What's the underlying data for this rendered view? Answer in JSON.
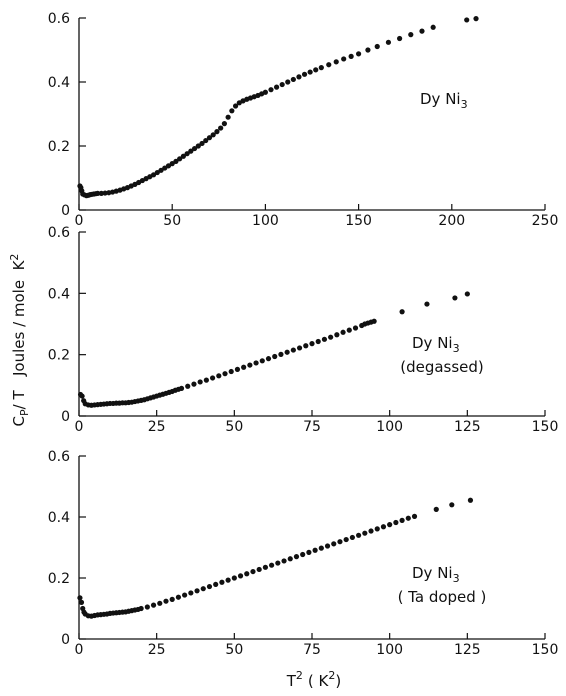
{
  "y_axis_label": "C",
  "y_axis_label_sub": "P",
  "y_axis_label_rest": "/ T   Joules / mole  K",
  "y_axis_label_sup": "2",
  "x_axis_label": "T",
  "x_axis_label_sup": "2",
  "x_axis_label_rest": "( K",
  "x_axis_label_sup2": "2",
  "x_axis_label_close": ")",
  "colors": {
    "axis": "#111111",
    "points": "#111111",
    "background": "#ffffff"
  },
  "chart_data": [
    {
      "type": "scatter",
      "annotation": [
        "Dy Ni",
        "3"
      ],
      "annotation_sub": "",
      "xlim": [
        0,
        250
      ],
      "ylim": [
        0,
        0.6
      ],
      "x_ticks": [
        0,
        50,
        100,
        150,
        200,
        250
      ],
      "y_ticks": [
        0,
        0.2,
        0.4,
        0.6
      ],
      "x_tick_labels": [
        "0",
        "50",
        "100",
        "150",
        "200",
        "250"
      ],
      "y_tick_labels": [
        "0",
        "0.2",
        "0.4",
        "0.6"
      ],
      "points": [
        [
          0.5,
          0.075
        ],
        [
          1.0,
          0.07
        ],
        [
          1.5,
          0.06
        ],
        [
          2,
          0.05
        ],
        [
          3,
          0.047
        ],
        [
          4,
          0.045
        ],
        [
          5,
          0.046
        ],
        [
          6,
          0.048
        ],
        [
          7,
          0.049
        ],
        [
          8,
          0.05
        ],
        [
          9,
          0.051
        ],
        [
          10,
          0.052
        ],
        [
          12,
          0.052
        ],
        [
          14,
          0.053
        ],
        [
          16,
          0.054
        ],
        [
          18,
          0.056
        ],
        [
          20,
          0.059
        ],
        [
          22,
          0.062
        ],
        [
          24,
          0.066
        ],
        [
          26,
          0.07
        ],
        [
          28,
          0.075
        ],
        [
          30,
          0.08
        ],
        [
          32,
          0.086
        ],
        [
          34,
          0.092
        ],
        [
          36,
          0.098
        ],
        [
          38,
          0.104
        ],
        [
          40,
          0.11
        ],
        [
          42,
          0.117
        ],
        [
          44,
          0.124
        ],
        [
          46,
          0.131
        ],
        [
          48,
          0.138
        ],
        [
          50,
          0.145
        ],
        [
          52,
          0.152
        ],
        [
          54,
          0.16
        ],
        [
          56,
          0.168
        ],
        [
          58,
          0.176
        ],
        [
          60,
          0.184
        ],
        [
          62,
          0.192
        ],
        [
          64,
          0.2
        ],
        [
          66,
          0.208
        ],
        [
          68,
          0.217
        ],
        [
          70,
          0.226
        ],
        [
          72,
          0.235
        ],
        [
          74,
          0.245
        ],
        [
          76,
          0.256
        ],
        [
          78,
          0.27
        ],
        [
          80,
          0.29
        ],
        [
          82,
          0.31
        ],
        [
          84,
          0.325
        ],
        [
          86,
          0.335
        ],
        [
          88,
          0.341
        ],
        [
          90,
          0.346
        ],
        [
          92,
          0.35
        ],
        [
          94,
          0.354
        ],
        [
          96,
          0.358
        ],
        [
          98,
          0.363
        ],
        [
          100,
          0.368
        ],
        [
          103,
          0.376
        ],
        [
          106,
          0.384
        ],
        [
          109,
          0.392
        ],
        [
          112,
          0.4
        ],
        [
          115,
          0.408
        ],
        [
          118,
          0.416
        ],
        [
          121,
          0.424
        ],
        [
          124,
          0.431
        ],
        [
          127,
          0.438
        ],
        [
          130,
          0.445
        ],
        [
          134,
          0.454
        ],
        [
          138,
          0.463
        ],
        [
          142,
          0.472
        ],
        [
          146,
          0.48
        ],
        [
          150,
          0.488
        ],
        [
          155,
          0.5
        ],
        [
          160,
          0.511
        ],
        [
          166,
          0.524
        ],
        [
          172,
          0.536
        ],
        [
          178,
          0.548
        ],
        [
          184,
          0.559
        ],
        [
          190,
          0.571
        ],
        [
          208,
          0.594
        ],
        [
          213,
          0.598
        ]
      ]
    },
    {
      "type": "scatter",
      "annotation": [
        "Dy Ni",
        "3"
      ],
      "annotation_sub": "(degassed)",
      "xlim": [
        0,
        150
      ],
      "ylim": [
        0,
        0.6
      ],
      "x_ticks": [
        0,
        25,
        50,
        75,
        100,
        125,
        150
      ],
      "y_ticks": [
        0,
        0.2,
        0.4,
        0.6
      ],
      "x_tick_labels": [
        "0",
        "25",
        "50",
        "75",
        "100",
        "125",
        "150"
      ],
      "y_tick_labels": [
        "0",
        "0.2",
        "0.4",
        "0.6"
      ],
      "points": [
        [
          0.5,
          0.07
        ],
        [
          1.0,
          0.065
        ],
        [
          1.5,
          0.05
        ],
        [
          2,
          0.04
        ],
        [
          3,
          0.036
        ],
        [
          4,
          0.035
        ],
        [
          5,
          0.036
        ],
        [
          6,
          0.037
        ],
        [
          7,
          0.038
        ],
        [
          8,
          0.039
        ],
        [
          9,
          0.04
        ],
        [
          10,
          0.041
        ],
        [
          11,
          0.041
        ],
        [
          12,
          0.042
        ],
        [
          13,
          0.042
        ],
        [
          14,
          0.043
        ],
        [
          15,
          0.043
        ],
        [
          16,
          0.044
        ],
        [
          17,
          0.045
        ],
        [
          18,
          0.047
        ],
        [
          19,
          0.049
        ],
        [
          20,
          0.051
        ],
        [
          21,
          0.053
        ],
        [
          22,
          0.056
        ],
        [
          23,
          0.059
        ],
        [
          24,
          0.062
        ],
        [
          25,
          0.065
        ],
        [
          26,
          0.068
        ],
        [
          27,
          0.071
        ],
        [
          28,
          0.074
        ],
        [
          29,
          0.077
        ],
        [
          30,
          0.08
        ],
        [
          31,
          0.084
        ],
        [
          32,
          0.087
        ],
        [
          33,
          0.09
        ],
        [
          35,
          0.097
        ],
        [
          37,
          0.104
        ],
        [
          39,
          0.111
        ],
        [
          41,
          0.117
        ],
        [
          43,
          0.124
        ],
        [
          45,
          0.131
        ],
        [
          47,
          0.138
        ],
        [
          49,
          0.145
        ],
        [
          51,
          0.152
        ],
        [
          53,
          0.159
        ],
        [
          55,
          0.166
        ],
        [
          57,
          0.173
        ],
        [
          59,
          0.18
        ],
        [
          61,
          0.187
        ],
        [
          63,
          0.194
        ],
        [
          65,
          0.201
        ],
        [
          67,
          0.208
        ],
        [
          69,
          0.215
        ],
        [
          71,
          0.222
        ],
        [
          73,
          0.229
        ],
        [
          75,
          0.236
        ],
        [
          77,
          0.243
        ],
        [
          79,
          0.25
        ],
        [
          81,
          0.257
        ],
        [
          83,
          0.265
        ],
        [
          85,
          0.273
        ],
        [
          87,
          0.28
        ],
        [
          89,
          0.287
        ],
        [
          91,
          0.295
        ],
        [
          92,
          0.3
        ],
        [
          93,
          0.303
        ],
        [
          94,
          0.306
        ],
        [
          95,
          0.309
        ],
        [
          104,
          0.34
        ],
        [
          112,
          0.365
        ],
        [
          121,
          0.385
        ],
        [
          125,
          0.398
        ]
      ]
    },
    {
      "type": "scatter",
      "annotation": [
        "Dy Ni",
        "3"
      ],
      "annotation_sub": "( Ta  doped )",
      "xlim": [
        0,
        150
      ],
      "ylim": [
        0,
        0.6
      ],
      "x_ticks": [
        0,
        25,
        50,
        75,
        100,
        125,
        150
      ],
      "y_ticks": [
        0,
        0.2,
        0.4,
        0.6
      ],
      "x_tick_labels": [
        "0",
        "25",
        "50",
        "75",
        "100",
        "125",
        "150"
      ],
      "y_tick_labels": [
        "0",
        "0.2",
        "0.4",
        "0.6"
      ],
      "points": [
        [
          0.3,
          0.135
        ],
        [
          0.8,
          0.12
        ],
        [
          1.2,
          0.1
        ],
        [
          1.6,
          0.088
        ],
        [
          2,
          0.082
        ],
        [
          3,
          0.076
        ],
        [
          4,
          0.075
        ],
        [
          5,
          0.077
        ],
        [
          6,
          0.079
        ],
        [
          7,
          0.08
        ],
        [
          8,
          0.081
        ],
        [
          9,
          0.082
        ],
        [
          10,
          0.084
        ],
        [
          11,
          0.085
        ],
        [
          12,
          0.086
        ],
        [
          13,
          0.087
        ],
        [
          14,
          0.088
        ],
        [
          15,
          0.089
        ],
        [
          16,
          0.091
        ],
        [
          17,
          0.093
        ],
        [
          18,
          0.095
        ],
        [
          19,
          0.097
        ],
        [
          20,
          0.1
        ],
        [
          22,
          0.105
        ],
        [
          24,
          0.111
        ],
        [
          26,
          0.117
        ],
        [
          28,
          0.124
        ],
        [
          30,
          0.13
        ],
        [
          32,
          0.137
        ],
        [
          34,
          0.144
        ],
        [
          36,
          0.151
        ],
        [
          38,
          0.158
        ],
        [
          40,
          0.165
        ],
        [
          42,
          0.172
        ],
        [
          44,
          0.179
        ],
        [
          46,
          0.186
        ],
        [
          48,
          0.193
        ],
        [
          50,
          0.2
        ],
        [
          52,
          0.207
        ],
        [
          54,
          0.214
        ],
        [
          56,
          0.221
        ],
        [
          58,
          0.228
        ],
        [
          60,
          0.235
        ],
        [
          62,
          0.242
        ],
        [
          64,
          0.249
        ],
        [
          66,
          0.256
        ],
        [
          68,
          0.263
        ],
        [
          70,
          0.27
        ],
        [
          72,
          0.277
        ],
        [
          74,
          0.284
        ],
        [
          76,
          0.291
        ],
        [
          78,
          0.298
        ],
        [
          80,
          0.305
        ],
        [
          82,
          0.312
        ],
        [
          84,
          0.319
        ],
        [
          86,
          0.326
        ],
        [
          88,
          0.333
        ],
        [
          90,
          0.34
        ],
        [
          92,
          0.347
        ],
        [
          94,
          0.354
        ],
        [
          96,
          0.361
        ],
        [
          98,
          0.368
        ],
        [
          100,
          0.375
        ],
        [
          102,
          0.382
        ],
        [
          104,
          0.389
        ],
        [
          106,
          0.396
        ],
        [
          108,
          0.402
        ],
        [
          115,
          0.425
        ],
        [
          120,
          0.44
        ],
        [
          126,
          0.455
        ]
      ]
    }
  ]
}
